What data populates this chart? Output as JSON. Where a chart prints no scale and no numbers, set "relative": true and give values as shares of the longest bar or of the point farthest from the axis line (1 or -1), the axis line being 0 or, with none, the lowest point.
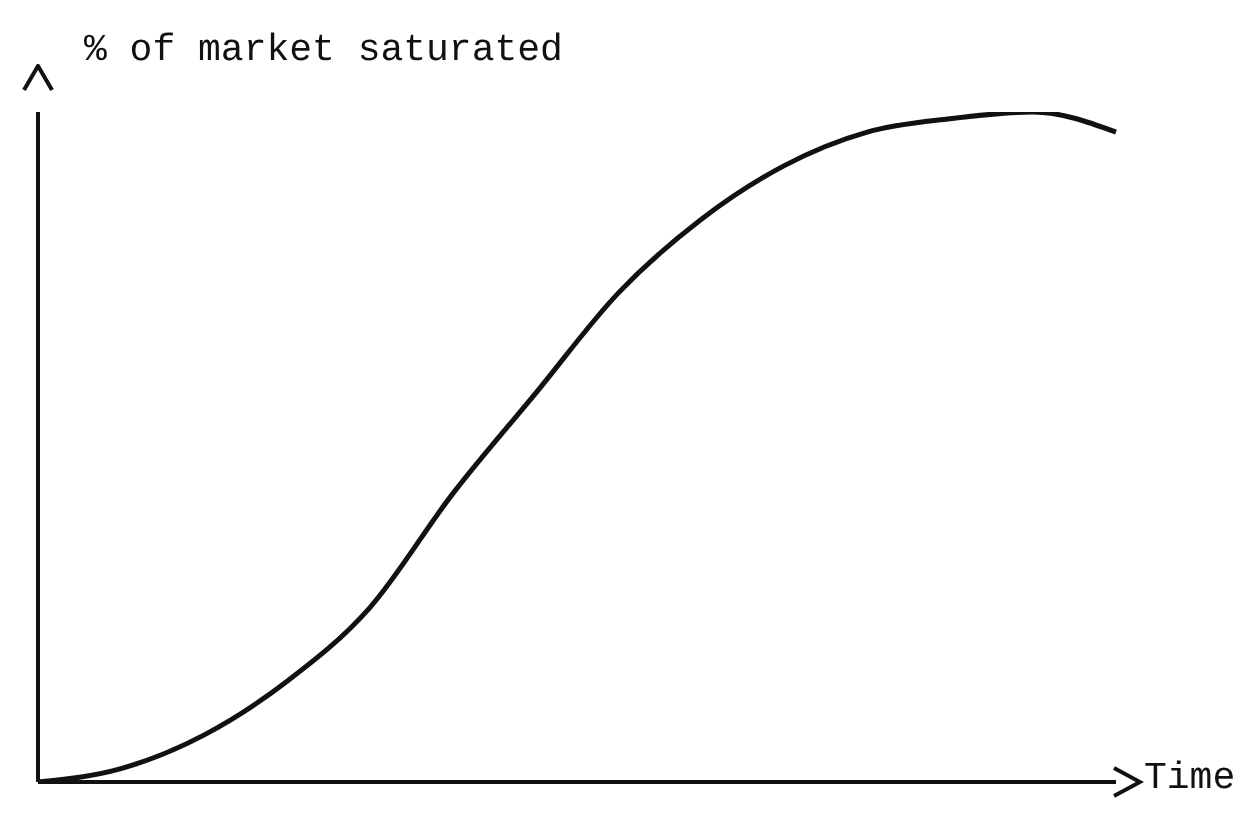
{
  "chart_data": {
    "type": "line",
    "ylabel": "% of market saturated",
    "xlabel": "Time",
    "relative": true,
    "categories": [
      null,
      null,
      null,
      null,
      null,
      null,
      null,
      null,
      null,
      null,
      null,
      null,
      null,
      null
    ],
    "series": [
      {
        "color": "#111111",
        "values": [
          0,
          0.02,
          0.07,
          0.15,
          0.26,
          0.43,
          0.58,
          0.73,
          0.84,
          0.92,
          0.97,
          0.99,
          1,
          0.97
        ]
      }
    ],
    "marker": "none",
    "line_style": "solid",
    "grid": false,
    "legend": false,
    "tick_labels": false
  }
}
